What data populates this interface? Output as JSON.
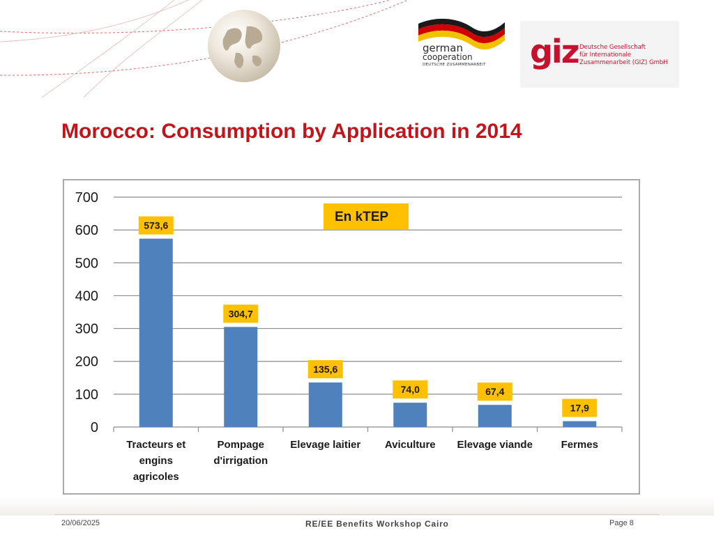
{
  "header": {
    "german_cooperation": {
      "line1": "german",
      "line2": "cooperation",
      "line3": "DEUTSCHE ZUSAMMENARBEIT"
    },
    "giz": {
      "mark": "giz",
      "line1": "Deutsche Gesellschaft",
      "line2": "für Internationale",
      "line3": "Zusammenarbeit (GIZ) GmbH"
    }
  },
  "slide": {
    "title": "Morocco: Consumption by Application in 2014"
  },
  "chart_data": {
    "type": "bar",
    "title": "",
    "annotation": "En kTEP",
    "categories": [
      [
        "Tracteurs et",
        "engins",
        "agricoles"
      ],
      [
        "Pompage",
        "d'irrigation"
      ],
      [
        "Elevage laitier"
      ],
      [
        "Aviculture"
      ],
      [
        "Elevage viande"
      ],
      [
        "Fermes"
      ]
    ],
    "values": [
      573.6,
      304.7,
      135.6,
      74.0,
      67.4,
      17.9
    ],
    "data_labels": [
      "573,6",
      "304,7",
      "135,6",
      "74,0",
      "67,4",
      "17,9"
    ],
    "yticks": [
      "0",
      "100",
      "200",
      "300",
      "400",
      "500",
      "600",
      "700"
    ],
    "ylim": [
      0,
      700
    ],
    "grid": true,
    "bar_color": "#4f81bd",
    "label_bg_color": "#ffc000"
  },
  "footer": {
    "date": "20/06/2025",
    "center": "RE/EE Benefits Workshop Cairo",
    "page": "Page 8"
  },
  "colors": {
    "title": "#c0151b",
    "giz_red": "#c8102e"
  }
}
